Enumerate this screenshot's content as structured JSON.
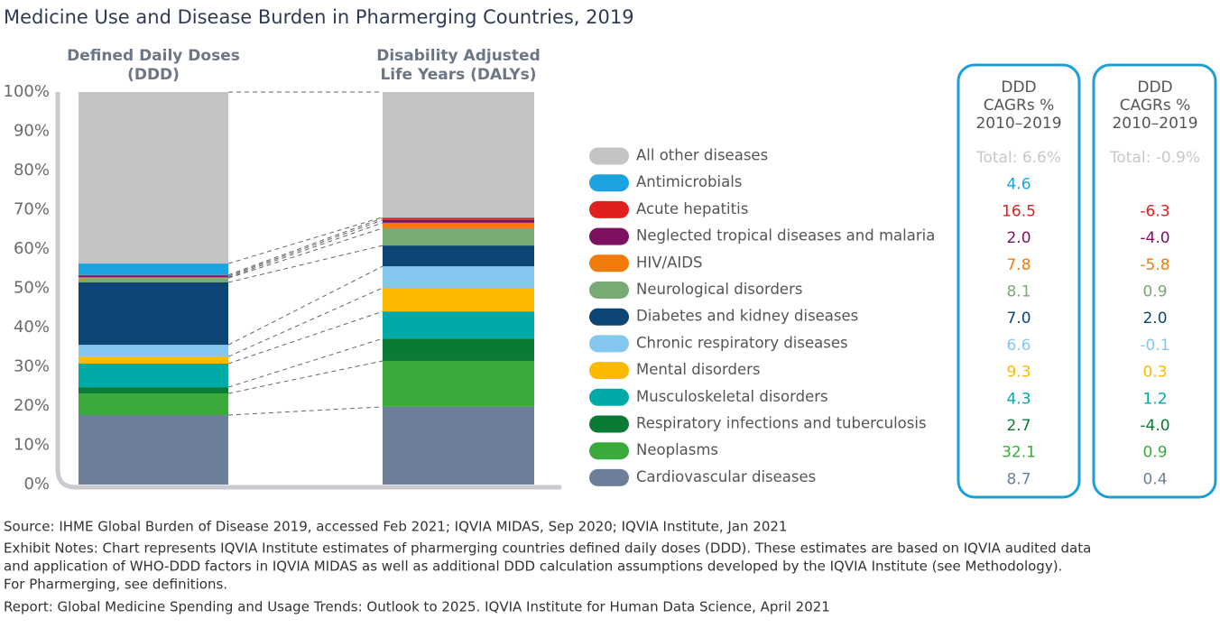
{
  "chart_data": {
    "type": "stacked_bar_100",
    "title": "Medicine Use and Disease Burden in Pharmerging Countries, 2019",
    "categories": [
      "Defined Daily Doses (DDD)",
      "Disability Adjusted Life Years (DALYs)"
    ],
    "ylim": [
      0,
      100
    ],
    "yticks": [
      {
        "value": 0,
        "label": "0%"
      },
      {
        "value": 10,
        "label": "10%"
      },
      {
        "value": 20,
        "label": "20%"
      },
      {
        "value": 30,
        "label": "30%"
      },
      {
        "value": 40,
        "label": "40%"
      },
      {
        "value": 50,
        "label": "50%"
      },
      {
        "value": 60,
        "label": "60%"
      },
      {
        "value": 70,
        "label": "70%"
      },
      {
        "value": 80,
        "label": "80%"
      },
      {
        "value": 90,
        "label": "90%"
      },
      {
        "value": 100,
        "label": "100%"
      }
    ],
    "series": [
      {
        "name": "Cardiovascular diseases",
        "color": "#6e7f9b",
        "values": [
          17.7,
          19.8
        ]
      },
      {
        "name": "Neoplasms",
        "color": "#3aaa3a",
        "values": [
          5.5,
          11.7
        ]
      },
      {
        "name": "Respiratory infections and tuberculosis",
        "color": "#0a7a35",
        "values": [
          1.6,
          5.7
        ]
      },
      {
        "name": "Musculoskeletal disorders",
        "color": "#00aaa6",
        "values": [
          6.0,
          6.9
        ]
      },
      {
        "name": "Mental disorders",
        "color": "#fbb900",
        "values": [
          1.8,
          6.0
        ]
      },
      {
        "name": "Chronic respiratory diseases",
        "color": "#85c8ef",
        "values": [
          3.0,
          5.5
        ]
      },
      {
        "name": "Diabetes and kidney diseases",
        "color": "#0d4675",
        "values": [
          15.9,
          5.3
        ]
      },
      {
        "name": "Neurological disorders",
        "color": "#78aa74",
        "values": [
          1.1,
          4.4
        ]
      },
      {
        "name": "HIV/AIDS",
        "color": "#f07b0a",
        "values": [
          0.2,
          1.4
        ]
      },
      {
        "name": "Neglected tropical diseases and malaria",
        "color": "#7d1060",
        "values": [
          0.3,
          0.7
        ]
      },
      {
        "name": "Acute hepatitis",
        "color": "#e0201e",
        "values": [
          0.3,
          0.5
        ]
      },
      {
        "name": "Antimicrobials",
        "color": "#1aa3e0",
        "values": [
          2.9,
          0.2
        ]
      },
      {
        "name": "All other diseases",
        "color": "#c4c4c4",
        "values": [
          43.7,
          31.9
        ]
      }
    ],
    "tables": [
      {
        "header": [
          "DDD",
          "CAGRs %",
          "2010–2019"
        ],
        "total": "Total: 6.6%",
        "labels": [
          "8.7",
          "32.1",
          "2.7",
          "4.3",
          "9.3",
          "6.6",
          "7.0",
          "8.1",
          "7.8",
          "2.0",
          "16.5",
          "4.6",
          null
        ]
      },
      {
        "header": [
          "DDD",
          "CAGRs %",
          "2010–2019"
        ],
        "total": "Total: -0.9%",
        "labels": [
          "0.4",
          "0.9",
          "-4.0",
          "1.2",
          "0.3",
          "-0.1",
          "2.0",
          "0.9",
          "-5.8",
          "-4.0",
          "-6.3",
          null,
          null
        ]
      }
    ],
    "source": "Source: IHME Global Burden of Disease 2019, accessed Feb 2021; IQVIA MIDAS, Sep 2020; IQVIA Institute, Jan 2021",
    "notes": [
      "Exhibit Notes: Chart represents IQVIA Institute estimates of pharmerging countries defined daily doses (DDD). These estimates are based on IQVIA audited data",
      "and application of WHO-DDD factors in IQVIA MIDAS as well as additional DDD calculation assumptions developed by the IQVIA Institute (see Methodology).",
      "For Pharmerging, see definitions."
    ],
    "report": "Report: Global Medicine Spending and Usage Trends: Outlook to 2025. IQVIA Institute for Human Data Science, April 2021"
  }
}
